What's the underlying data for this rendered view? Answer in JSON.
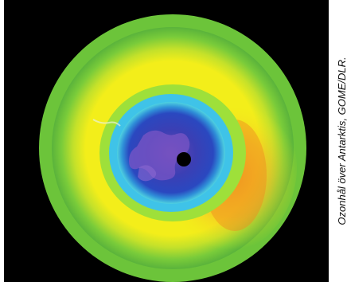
{
  "image": {
    "description_colors": {
      "background": "#000000",
      "outer_ring": "#7ccf35",
      "yellow_zone": "#f3ee1a",
      "orange_zone": "#f2a623",
      "cyan_ring": "#39c6e6",
      "blue_hole": "#2a3aa8",
      "purple_core": "#6c4bb6",
      "pole_dot": "#000000"
    }
  },
  "caption": {
    "text": "Ozonhål över Antarktis, GOME/DLR."
  }
}
